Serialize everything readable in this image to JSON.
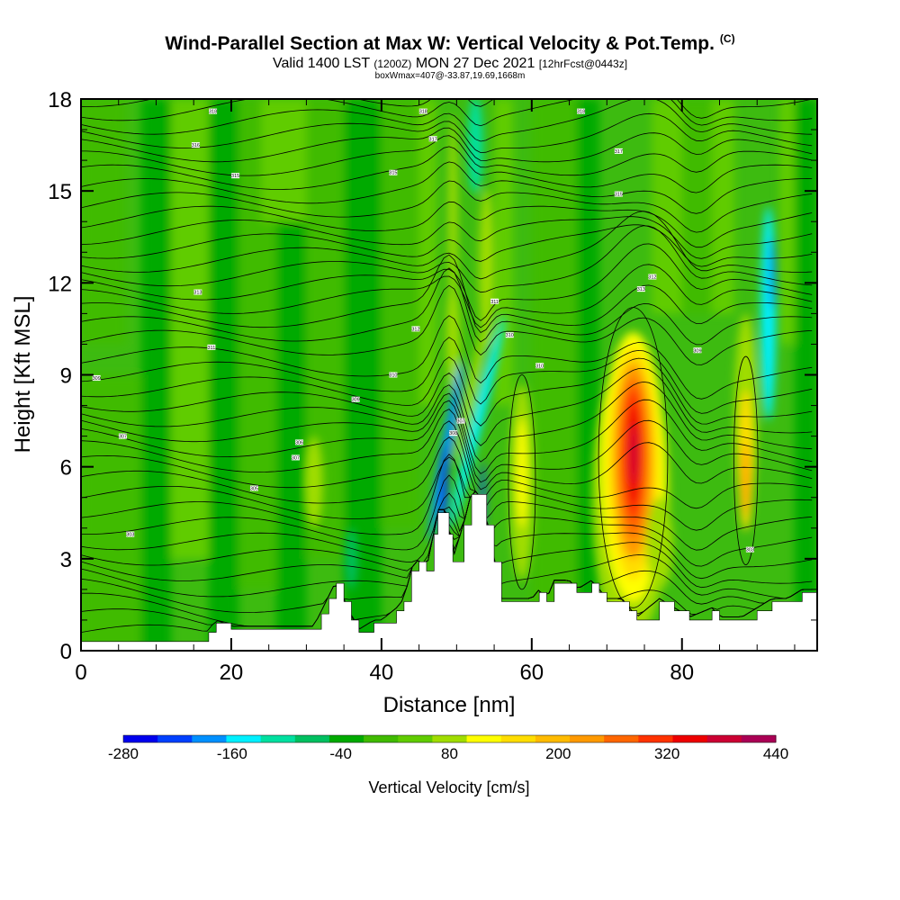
{
  "header": {
    "title": "Wind-Parallel Section at Max W: Vertical Velocity & Pot.Temp.",
    "title_mark": "(C)",
    "valid_prefix": "Valid 1400 LST",
    "valid_utc": "(1200Z)",
    "valid_date": "MON 27 Dec 2021",
    "forecast": "[12hrFcst@0443z]",
    "box_info": "boxWmax=407@-33.87,19.69,1668m"
  },
  "chart_data": {
    "type": "heatmap",
    "xlabel": "Distance [nm]",
    "ylabel": "Height [Kft MSL]",
    "xlim": [
      0,
      98
    ],
    "ylim": [
      0,
      18
    ],
    "x_ticks": [
      0,
      20,
      40,
      60,
      80
    ],
    "y_ticks": [
      0,
      3,
      6,
      9,
      12,
      15,
      18
    ],
    "colorbar": {
      "label": "Vertical Velocity [cm/s]",
      "min": -280,
      "max": 440,
      "step": 40,
      "tick_labels": [
        "-280",
        "-160",
        "-40",
        "80",
        "200",
        "320",
        "440"
      ],
      "tick_values": [
        -280,
        -160,
        -40,
        80,
        200,
        320,
        440
      ],
      "colors": [
        "#0000ee",
        "#0040ff",
        "#0090ff",
        "#00f0ff",
        "#00e0a0",
        "#00c060",
        "#00aa00",
        "#40bb00",
        "#60cc00",
        "#a0dd00",
        "#ffff00",
        "#ffdd00",
        "#ffbb00",
        "#ff9900",
        "#ff6600",
        "#ff3300",
        "#ee0000",
        "#cc0033",
        "#aa0055"
      ]
    },
    "vertical_velocity_features": [
      {
        "name": "main updraft core",
        "x_nm": 73.5,
        "z_kft": 6.3,
        "max_cm_s": 407
      },
      {
        "name": "eastern updraft",
        "x_nm": 88.5,
        "z_kft": 6.0,
        "max_cm_s": 260
      },
      {
        "name": "updraft",
        "x_nm": 58.5,
        "z_kft": 5.5,
        "max_cm_s": 130
      },
      {
        "name": "updraft",
        "x_nm": 54,
        "z_kft": 12.5,
        "max_cm_s": 100
      },
      {
        "name": "updraft",
        "x_nm": 49.5,
        "z_kft": 11,
        "max_cm_s": 110
      },
      {
        "name": "downdraft",
        "x_nm": 48.3,
        "z_kft": 6,
        "min_cm_s": -280
      },
      {
        "name": "downdraft",
        "x_nm": 52.5,
        "z_kft": 6.5,
        "min_cm_s": -220
      },
      {
        "name": "downdraft",
        "x_nm": 91,
        "z_kft": 10,
        "min_cm_s": -160
      }
    ],
    "terrain_kft": [
      [
        0,
        0.3
      ],
      [
        10,
        0.3
      ],
      [
        16,
        0.3
      ],
      [
        17,
        0.6
      ],
      [
        18,
        0.9
      ],
      [
        20,
        0.7
      ],
      [
        28,
        0.7
      ],
      [
        31,
        0.7
      ],
      [
        32,
        1.2
      ],
      [
        33,
        1.7
      ],
      [
        34,
        2.2
      ],
      [
        35,
        1.6
      ],
      [
        36,
        1.0
      ],
      [
        37,
        0.6
      ],
      [
        39,
        0.9
      ],
      [
        40,
        0.9
      ],
      [
        42,
        1.3
      ],
      [
        43,
        1.6
      ],
      [
        44,
        2.6
      ],
      [
        45,
        2.9
      ],
      [
        46,
        2.6
      ],
      [
        47,
        3.8
      ],
      [
        47.5,
        4.5
      ],
      [
        48.5,
        4.5
      ],
      [
        49,
        3.8
      ],
      [
        49.5,
        2.9
      ],
      [
        51,
        4.1
      ],
      [
        52,
        5.1
      ],
      [
        53,
        5.1
      ],
      [
        54,
        4.1
      ],
      [
        55,
        2.9
      ],
      [
        56,
        1.6
      ],
      [
        60,
        1.6
      ],
      [
        61,
        1.9
      ],
      [
        62,
        1.6
      ],
      [
        63,
        2.2
      ],
      [
        65,
        2.2
      ],
      [
        66,
        1.9
      ],
      [
        68,
        2.2
      ],
      [
        69,
        1.9
      ],
      [
        70,
        1.6
      ],
      [
        72,
        1.6
      ],
      [
        73,
        1.3
      ],
      [
        74,
        1.0
      ],
      [
        77,
        1.6
      ],
      [
        79,
        1.3
      ],
      [
        81,
        1.0
      ],
      [
        84,
        1.3
      ],
      [
        85,
        1.0
      ],
      [
        88,
        1.0
      ],
      [
        90,
        1.3
      ],
      [
        92,
        1.6
      ],
      [
        94,
        1.6
      ],
      [
        96,
        1.9
      ],
      [
        98,
        1.9
      ]
    ],
    "potential_temperature_labels": [
      {
        "text": "318",
        "x": 17.5,
        "z": 17.6
      },
      {
        "text": "316",
        "x": 15.2,
        "z": 16.5
      },
      {
        "text": "315",
        "x": 20.5,
        "z": 15.5
      },
      {
        "text": "313",
        "x": 15.5,
        "z": 11.7
      },
      {
        "text": "311",
        "x": 17.3,
        "z": 9.9
      },
      {
        "text": "309",
        "x": 2,
        "z": 8.9
      },
      {
        "text": "307",
        "x": 5.5,
        "z": 7.0
      },
      {
        "text": "305",
        "x": 23,
        "z": 5.3
      },
      {
        "text": "303",
        "x": 6.5,
        "z": 3.8
      },
      {
        "text": "307",
        "x": 28.5,
        "z": 6.3
      },
      {
        "text": "306",
        "x": 29,
        "z": 6.8
      },
      {
        "text": "309",
        "x": 36.5,
        "z": 8.2
      },
      {
        "text": "310",
        "x": 41.5,
        "z": 9.0
      },
      {
        "text": "312",
        "x": 44.5,
        "z": 10.5
      },
      {
        "text": "315",
        "x": 41.5,
        "z": 15.6
      },
      {
        "text": "317",
        "x": 46.8,
        "z": 16.7
      },
      {
        "text": "318",
        "x": 45.5,
        "z": 17.6
      },
      {
        "text": "318",
        "x": 66.5,
        "z": 17.6
      },
      {
        "text": "317",
        "x": 71.5,
        "z": 16.3
      },
      {
        "text": "315",
        "x": 71.5,
        "z": 14.9
      },
      {
        "text": "313",
        "x": 74.5,
        "z": 11.8
      },
      {
        "text": "312",
        "x": 76,
        "z": 12.2
      },
      {
        "text": "311",
        "x": 55,
        "z": 11.4
      },
      {
        "text": "310",
        "x": 57,
        "z": 10.3
      },
      {
        "text": "310",
        "x": 61,
        "z": 9.3
      },
      {
        "text": "309",
        "x": 82,
        "z": 9.8
      },
      {
        "text": "308",
        "x": 49.5,
        "z": 7.1
      },
      {
        "text": "307",
        "x": 50.5,
        "z": 7.5
      },
      {
        "text": "303",
        "x": 89,
        "z": 3.3
      }
    ]
  }
}
